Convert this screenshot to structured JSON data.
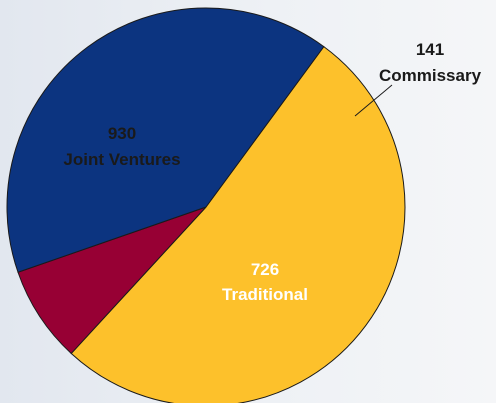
{
  "chart_data": {
    "type": "pie",
    "slices": [
      {
        "value": 930,
        "label": "Joint Ventures",
        "color": "#fdc12b",
        "text_color": "#1a1a1a"
      },
      {
        "value": 141,
        "label": "Commissary",
        "color": "#970034",
        "text_color": "#1a1a1a"
      },
      {
        "value": 726,
        "label": "Traditional",
        "color": "#0c3480",
        "text_color": "#ffffff"
      }
    ],
    "title": "",
    "legend": "none"
  }
}
